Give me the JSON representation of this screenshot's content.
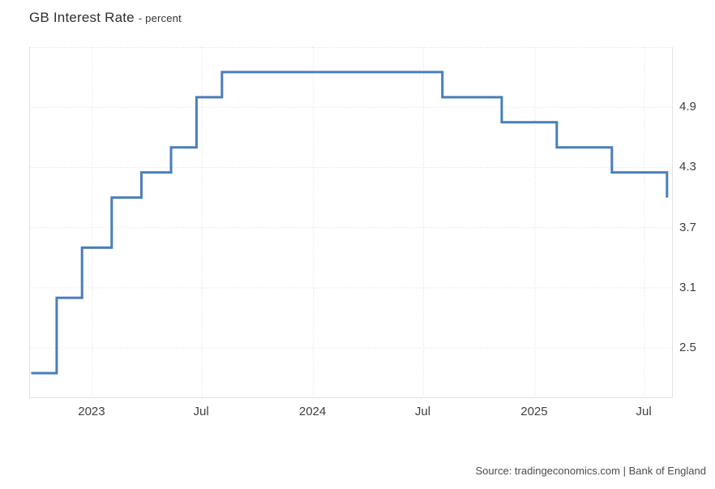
{
  "header": {
    "title": "GB Interest Rate",
    "subtitle": "- percent"
  },
  "footer": {
    "source": "Source: tradingeconomics.com | Bank of England"
  },
  "colors": {
    "line": "#4a7ebb",
    "grid": "#e0e0e0",
    "frame": "#e2e2e2",
    "title_text": "#2f2f2f",
    "tick_text": "#3e3e3e",
    "source_text": "#4c4c4c"
  },
  "chart_data": {
    "type": "line",
    "subtype": "step",
    "title": "GB Interest Rate",
    "ylabel": "percent",
    "xlabel": "",
    "grid": "dotted",
    "legend": "none",
    "ylim": [
      2.0,
      5.5
    ],
    "xlim": [
      "2022-09-20",
      "2025-08-18"
    ],
    "y_ticks": [
      2.5,
      3.1,
      3.7,
      4.3,
      4.9
    ],
    "x_ticks": [
      {
        "label": "2023",
        "date": "2023-01-01"
      },
      {
        "label": "Jul",
        "date": "2023-07-01"
      },
      {
        "label": "2024",
        "date": "2024-01-01"
      },
      {
        "label": "Jul",
        "date": "2024-07-01"
      },
      {
        "label": "2025",
        "date": "2025-01-01"
      },
      {
        "label": "Jul",
        "date": "2025-07-01"
      }
    ],
    "series": [
      {
        "name": "GB Interest Rate",
        "color": "#4a7ebb",
        "points": [
          {
            "date": "2022-09-22",
            "value": 2.25
          },
          {
            "date": "2022-11-03",
            "value": 3.0
          },
          {
            "date": "2022-12-15",
            "value": 3.5
          },
          {
            "date": "2023-02-02",
            "value": 4.0
          },
          {
            "date": "2023-03-23",
            "value": 4.25
          },
          {
            "date": "2023-05-11",
            "value": 4.5
          },
          {
            "date": "2023-06-22",
            "value": 5.0
          },
          {
            "date": "2023-08-03",
            "value": 5.25
          },
          {
            "date": "2024-08-01",
            "value": 5.0
          },
          {
            "date": "2024-11-07",
            "value": 4.75
          },
          {
            "date": "2025-02-06",
            "value": 4.5
          },
          {
            "date": "2025-05-08",
            "value": 4.25
          },
          {
            "date": "2025-08-07",
            "value": 4.0
          }
        ]
      }
    ]
  }
}
